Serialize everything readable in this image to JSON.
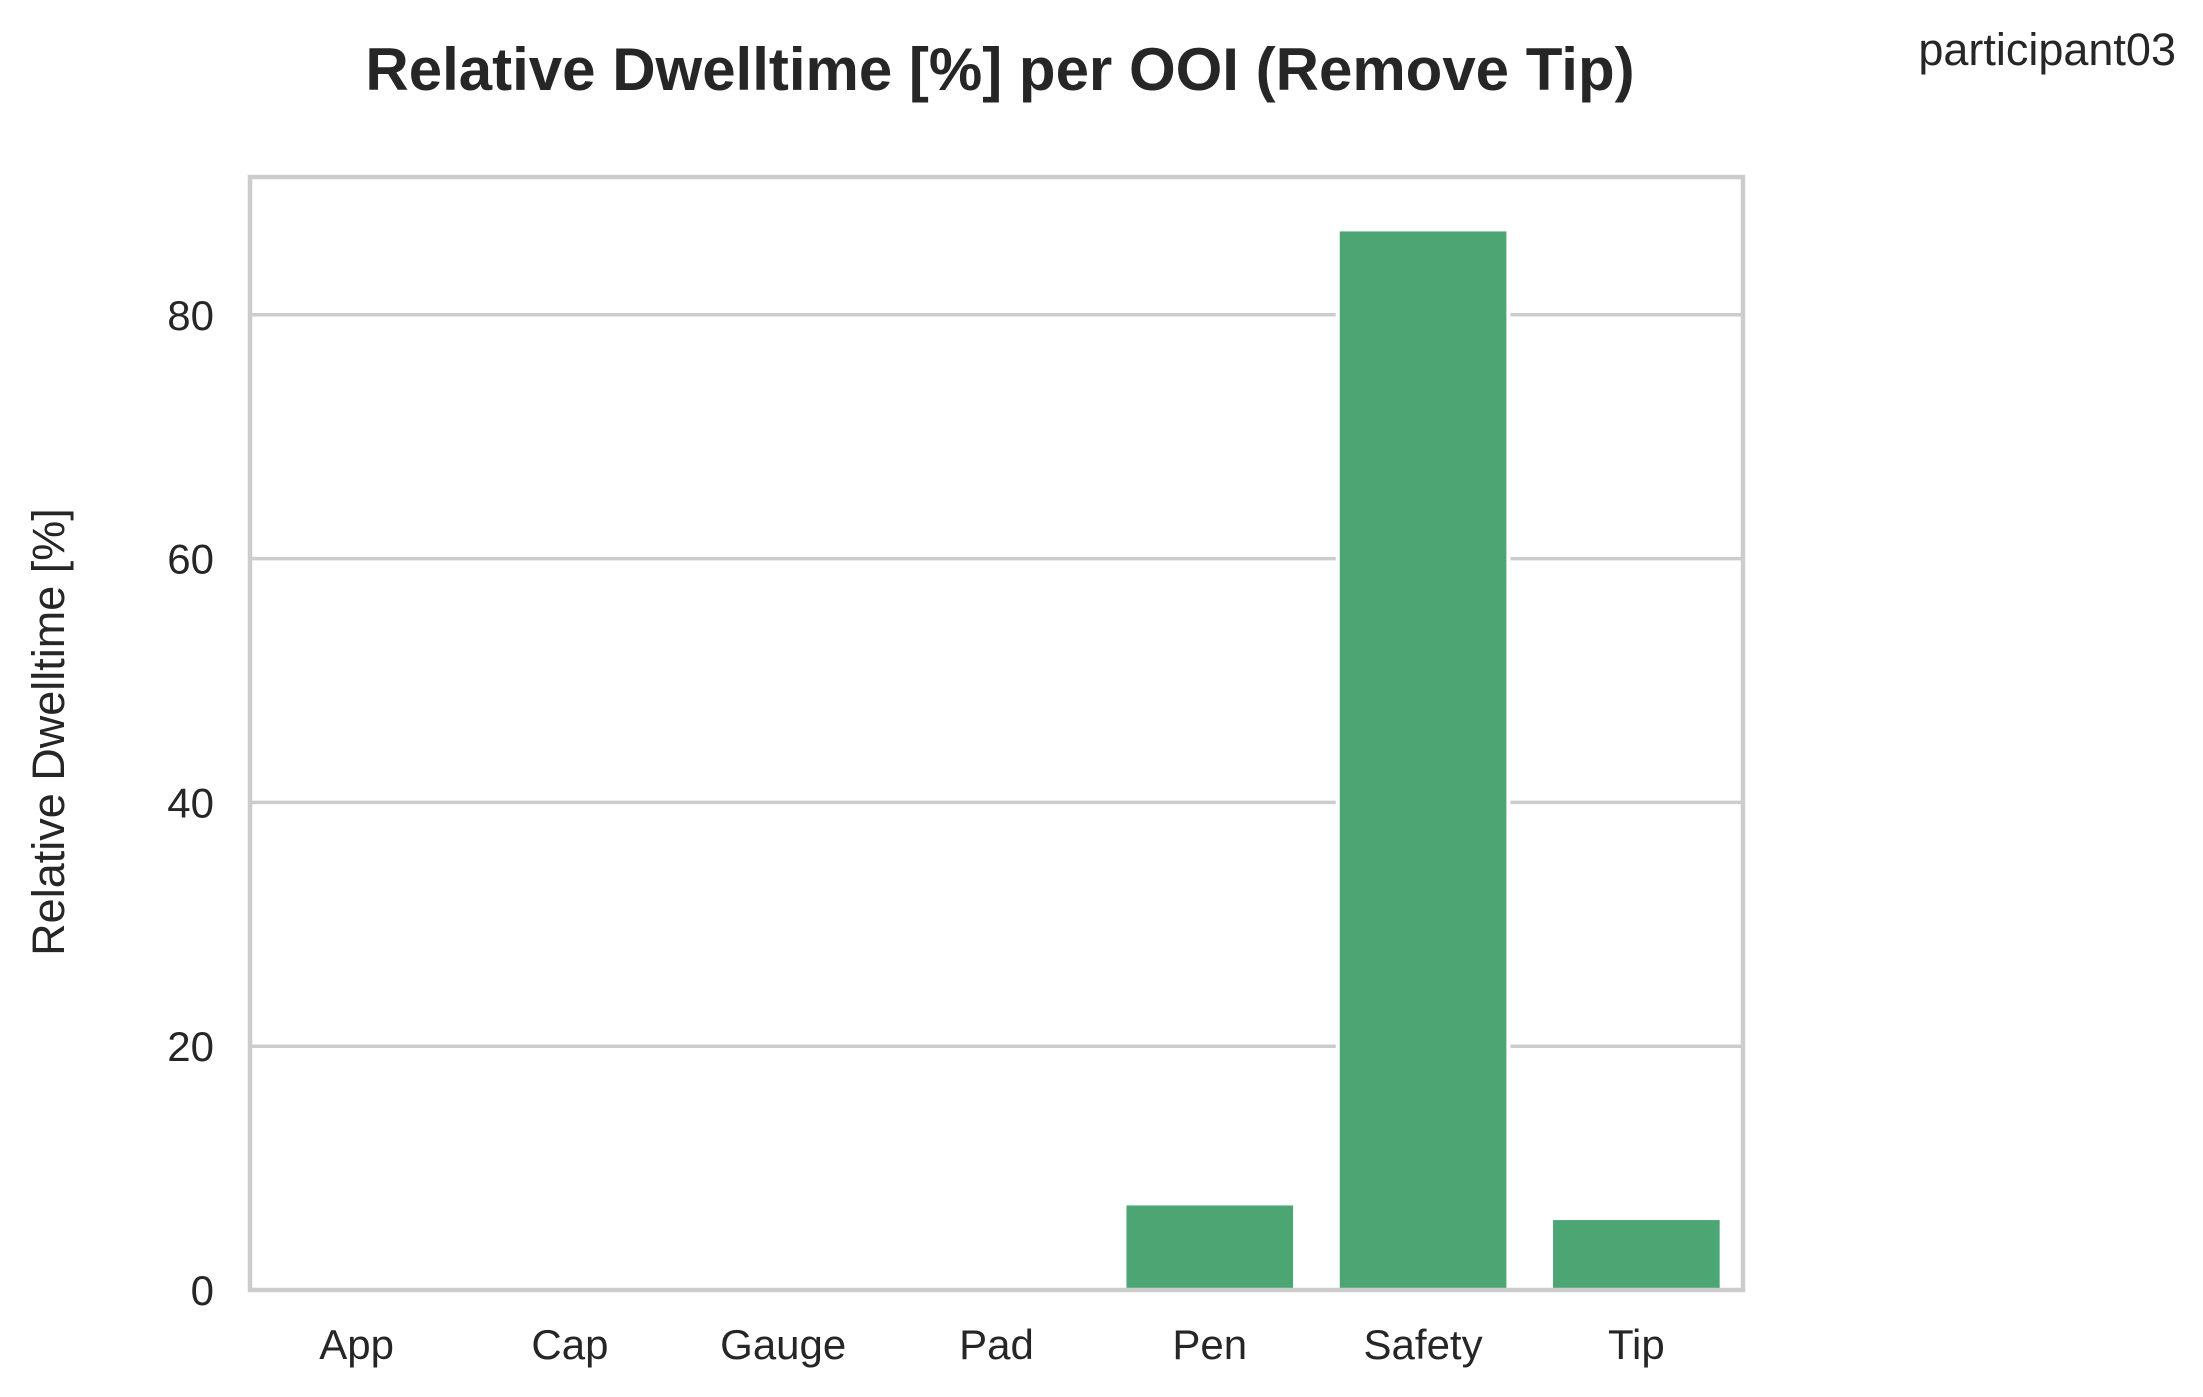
{
  "colors": {
    "bar": "#4ca674",
    "grid": "#cccccc",
    "text": "#262626",
    "background": "#ffffff"
  },
  "chart_data": {
    "type": "bar",
    "title": "Relative Dwelltime [%] per OOI (Remove Tip)",
    "corner_label": "participant03",
    "xlabel": "",
    "ylabel": "Relative Dwelltime [%]",
    "categories": [
      "App",
      "Cap",
      "Gauge",
      "Pad",
      "Pen",
      "Safety",
      "Tip"
    ],
    "values": [
      0,
      0,
      0,
      0,
      7.1,
      87.0,
      5.9
    ],
    "ylim": [
      0,
      91.3
    ],
    "yticks": [
      0,
      20,
      40,
      60,
      80
    ],
    "grid": true,
    "legend": "none"
  }
}
